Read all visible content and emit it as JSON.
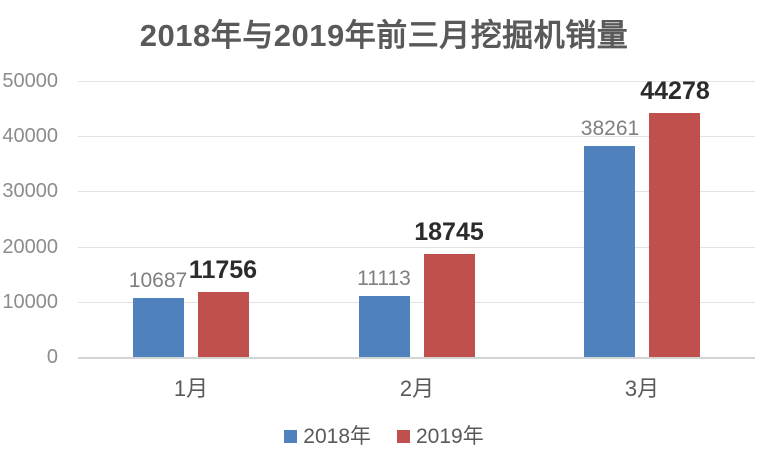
{
  "chart_data": {
    "type": "bar",
    "title": "2018年与2019年前三月挖掘机销量",
    "categories": [
      "1月",
      "2月",
      "3月"
    ],
    "series": [
      {
        "name": "2018年",
        "color": "#4F81BD",
        "values": [
          10687,
          11113,
          38261
        ],
        "label_style": "muted"
      },
      {
        "name": "2019年",
        "color": "#C0504D",
        "values": [
          11756,
          18745,
          44278
        ],
        "label_style": "emphasis"
      }
    ],
    "xlabel": "",
    "ylabel": "",
    "ylim": [
      0,
      50000
    ],
    "yticks": [
      0,
      10000,
      20000,
      30000,
      40000,
      50000
    ],
    "grid": true,
    "legend_position": "bottom",
    "data_labels": true
  },
  "colors": {
    "series_2018": "#4F81BD",
    "series_2019": "#C0504D",
    "gridline": "#E2E2E2",
    "baseline": "#D4D4D4",
    "title_text": "#595959",
    "axis_tick_text": "#8C8C8C",
    "category_text": "#595959",
    "muted_value_label": "#7F7F7F",
    "emphasis_value_label": "#2B2B2B",
    "legend_text": "#595959",
    "background": "#FFFFFF"
  }
}
